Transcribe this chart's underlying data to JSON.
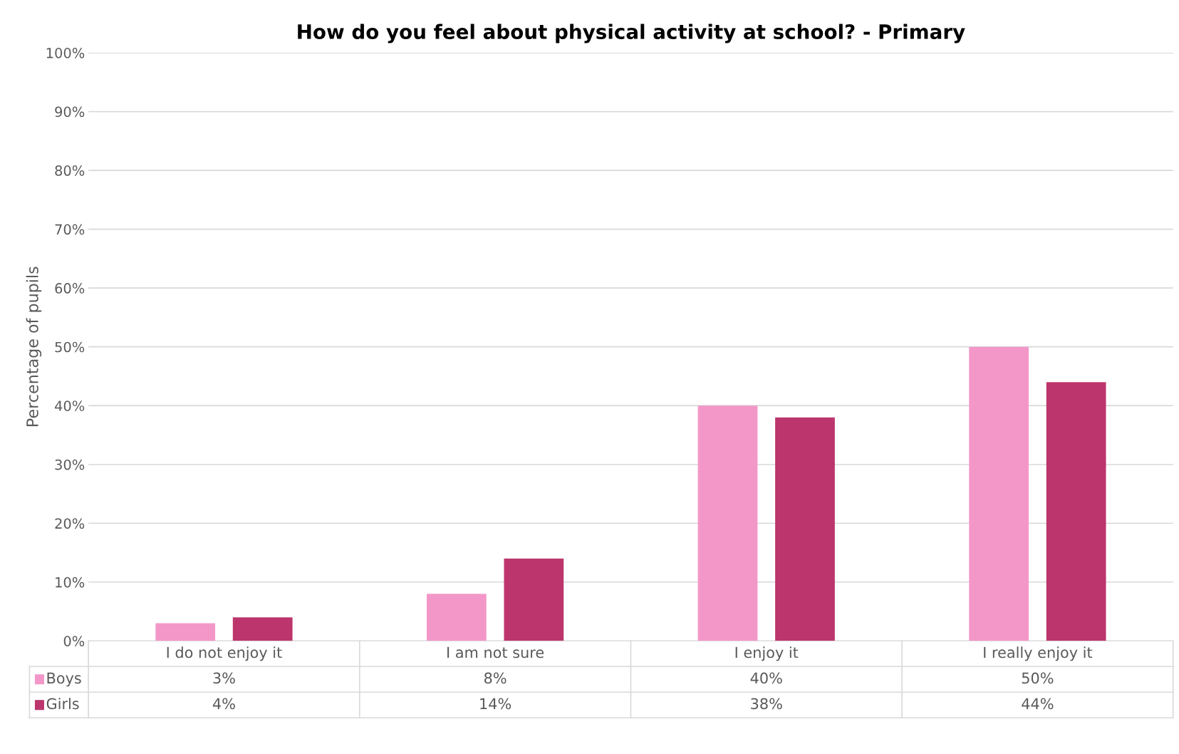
{
  "chart_data": {
    "type": "bar",
    "title": "How do you feel about physical activity at school? - Primary",
    "ylabel": "Percentage of pupils",
    "categories": [
      "I do not enjoy it",
      "I am not sure",
      "I enjoy it",
      "I really enjoy it"
    ],
    "series": [
      {
        "name": "Boys",
        "color": "#f397c9",
        "values": [
          3,
          8,
          40,
          50
        ],
        "value_labels": [
          "3%",
          "8%",
          "40%",
          "50%"
        ]
      },
      {
        "name": "Girls",
        "color": "#bc356c",
        "values": [
          4,
          14,
          38,
          44
        ],
        "value_labels": [
          "4%",
          "14%",
          "38%",
          "44%"
        ]
      }
    ],
    "ylim": [
      0,
      100
    ],
    "yticks": [
      {
        "value": 0,
        "label": "0%"
      },
      {
        "value": 10,
        "label": "10%"
      },
      {
        "value": 20,
        "label": "20%"
      },
      {
        "value": 30,
        "label": "30%"
      },
      {
        "value": 40,
        "label": "40%"
      },
      {
        "value": 50,
        "label": "50%"
      },
      {
        "value": 60,
        "label": "60%"
      },
      {
        "value": 70,
        "label": "70%"
      },
      {
        "value": 80,
        "label": "80%"
      },
      {
        "value": 90,
        "label": "90%"
      },
      {
        "value": 100,
        "label": "100%"
      }
    ],
    "grid": "y",
    "legend": "bottom"
  }
}
